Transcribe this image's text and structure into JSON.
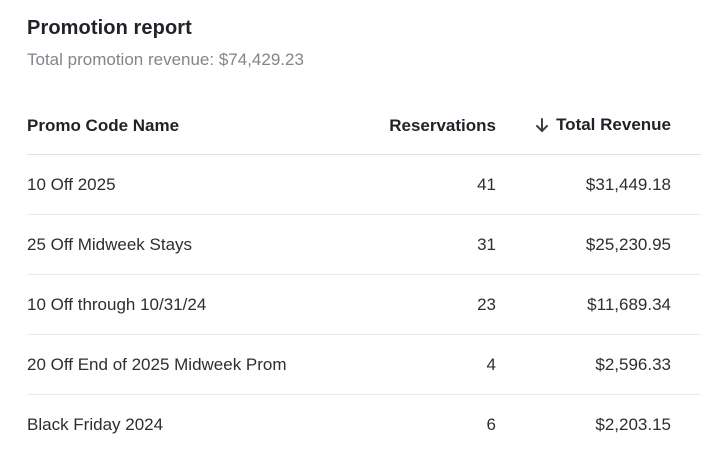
{
  "report": {
    "title": "Promotion report",
    "subtitle": "Total promotion revenue: $74,429.23"
  },
  "table": {
    "columns": {
      "name": "Promo Code Name",
      "reservations": "Reservations",
      "revenue": "Total Revenue"
    },
    "sort_icon": "arrow-down-icon",
    "rows": [
      {
        "name": "10 Off 2025",
        "reservations": "41",
        "revenue": "$31,449.18"
      },
      {
        "name": "25 Off Midweek Stays",
        "reservations": "31",
        "revenue": "$25,230.95"
      },
      {
        "name": "10 Off through 10/31/24",
        "reservations": "23",
        "revenue": "$11,689.34"
      },
      {
        "name": "20 Off End of 2025 Midweek Prom",
        "reservations": "4",
        "revenue": "$2,596.33"
      },
      {
        "name": "Black Friday 2024",
        "reservations": "6",
        "revenue": "$2,203.15"
      }
    ]
  }
}
